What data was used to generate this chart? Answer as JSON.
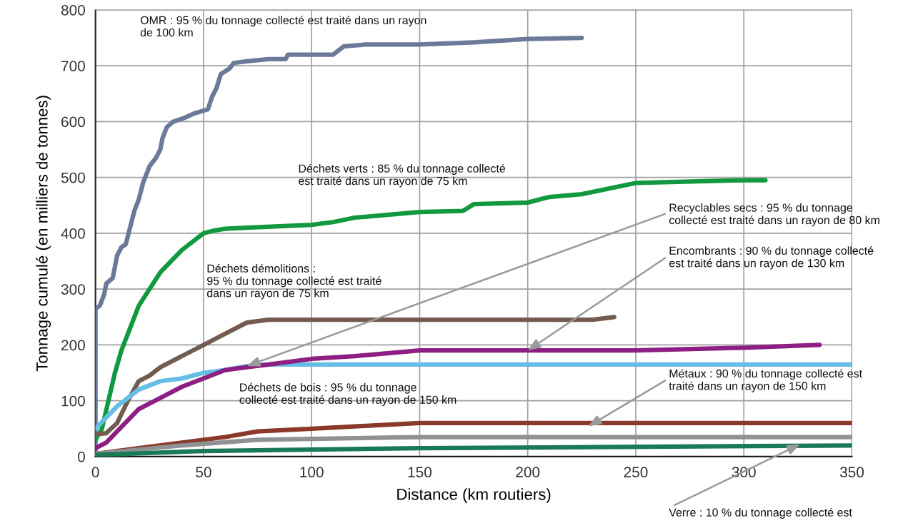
{
  "chart_data": {
    "type": "line",
    "xlabel": "Distance (km routiers)",
    "ylabel": "Tonnage cumulé (en milliers de tonnes)",
    "xlim": [
      0,
      350
    ],
    "xticks": [
      0,
      50,
      100,
      150,
      200,
      250,
      300,
      350
    ],
    "ylim": [
      0,
      800
    ],
    "yticks": [
      0,
      100,
      200,
      300,
      400,
      500,
      600,
      700,
      800
    ],
    "grid": true,
    "line_style": "solid",
    "marker": "none",
    "series": [
      {
        "color": "#6b7a99",
        "x": [
          0,
          0,
          2,
          4,
          5,
          8,
          10,
          12,
          14,
          16,
          18,
          20,
          22,
          25,
          28,
          30,
          31,
          33,
          36,
          40,
          46,
          52,
          54,
          56,
          58,
          62,
          64,
          70,
          80,
          88,
          89,
          110,
          115,
          125,
          150,
          175,
          200,
          225
        ],
        "values": [
          0,
          265,
          270,
          290,
          310,
          320,
          360,
          375,
          380,
          410,
          440,
          460,
          490,
          520,
          535,
          550,
          570,
          590,
          600,
          605,
          615,
          622,
          645,
          660,
          685,
          695,
          705,
          708,
          712,
          712,
          720,
          720,
          735,
          738,
          738,
          742,
          748,
          750
        ]
      },
      {
        "color": "#12993f",
        "x": [
          0,
          3,
          6,
          9,
          12,
          15,
          20,
          25,
          30,
          35,
          40,
          45,
          50,
          55,
          60,
          70,
          100,
          110,
          120,
          150,
          170,
          175,
          200,
          210,
          225,
          250,
          300,
          310
        ],
        "values": [
          30,
          50,
          100,
          150,
          190,
          220,
          270,
          300,
          330,
          350,
          370,
          385,
          400,
          405,
          408,
          410,
          415,
          420,
          428,
          438,
          440,
          452,
          455,
          465,
          470,
          490,
          495,
          495
        ]
      },
      {
        "color": "#735c4f",
        "x": [
          0,
          5,
          10,
          15,
          20,
          25,
          30,
          40,
          50,
          60,
          70,
          80,
          100,
          200,
          230,
          240
        ],
        "values": [
          40,
          42,
          60,
          100,
          135,
          145,
          160,
          180,
          200,
          220,
          240,
          245,
          245,
          245,
          245,
          250
        ]
      },
      {
        "color": "#66bde6",
        "x": [
          0,
          5,
          10,
          20,
          30,
          40,
          50,
          60,
          70,
          80,
          100,
          350
        ],
        "values": [
          50,
          70,
          90,
          120,
          135,
          140,
          150,
          155,
          162,
          165,
          165,
          165
        ]
      },
      {
        "color": "#8e1f82",
        "x": [
          0,
          5,
          10,
          20,
          30,
          40,
          50,
          60,
          70,
          80,
          100,
          120,
          135,
          150,
          200,
          250,
          300,
          335
        ],
        "values": [
          15,
          25,
          45,
          85,
          105,
          125,
          140,
          155,
          160,
          165,
          175,
          180,
          185,
          190,
          190,
          190,
          195,
          200
        ]
      },
      {
        "color": "#8b3a2a",
        "x": [
          0,
          20,
          40,
          60,
          75,
          100,
          125,
          150,
          350
        ],
        "values": [
          5,
          15,
          25,
          35,
          45,
          50,
          55,
          60,
          60
        ]
      },
      {
        "color": "#8f9295",
        "x": [
          0,
          40,
          75,
          150,
          350
        ],
        "values": [
          5,
          20,
          30,
          35,
          35
        ]
      },
      {
        "color": "#1a7a55",
        "x": [
          0,
          50,
          150,
          350
        ],
        "values": [
          3,
          10,
          15,
          20
        ]
      }
    ],
    "annotations": [
      "OMR : 95 % du tonnage collecté est traité dans un rayon\nde 100 km",
      "Déchets verts : 85 % du tonnage collecté\nest traité dans un rayon de 75 km",
      {
        "text": "Recyclables secs : 95 % du tonnage\ncollecté est traité dans un rayon de 80 km",
        "x": 70,
        "y": 162
      },
      {
        "text": "Encombrants : 90 % du tonnage collecté\nest traité dans un rayon de 130 km",
        "x": 200,
        "y": 190
      },
      "Déchets démolitions :\n95 % du tonnage collecté est traité\ndans un rayon de 75 km",
      {
        "text": "Métaux : 90 % du tonnage collecté est\ntraité dans un rayon de 150 km",
        "x": 228,
        "y": 54
      },
      "Déchets de bois : 95 % du tonnage\ncollecté est traité dans un rayon de 150 km",
      {
        "text": "Verre : 10 % du tonnage collecté est",
        "x": 326,
        "y": 22
      }
    ]
  }
}
